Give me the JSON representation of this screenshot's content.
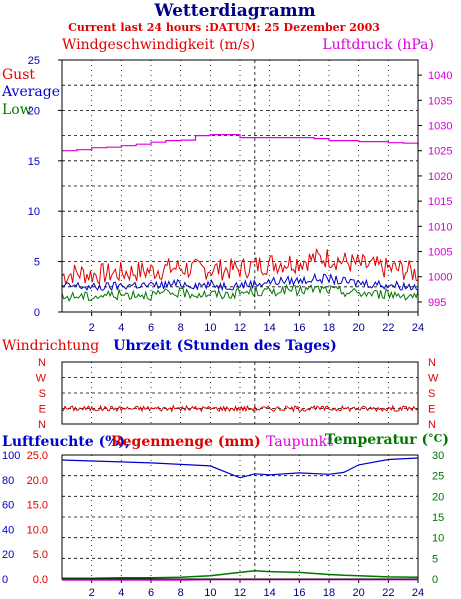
{
  "title": "Wetterdiagramm",
  "subtitle": "Current last 24 hours :DATUM: 25 Dezember 2003",
  "colors": {
    "red": "#e00000",
    "blue": "#0000cc",
    "green": "#007700",
    "magenta": "#dd00dd",
    "navy": "#000080"
  },
  "wind_panel": {
    "left_axis_title": "Windgeschwindigkeit (m/s)",
    "right_axis_title": "Luftdruck (hPa)",
    "legend": [
      "Gust",
      "Average",
      "Low"
    ],
    "left_ticks": [
      "0",
      "5",
      "10",
      "15",
      "20",
      "25"
    ],
    "right_ticks": [
      "995",
      "1000",
      "1005",
      "1010",
      "1015",
      "1020",
      "1025",
      "1030",
      "1035",
      "1040"
    ]
  },
  "direction_panel": {
    "left_title": "Windrichtung",
    "center_title": "Uhrzeit (Stunden des Tages)",
    "ticks": [
      "N",
      "E",
      "S",
      "W",
      "N"
    ]
  },
  "humidity_panel": {
    "left_title_humidity": "Luftfeuchte (%),",
    "left_title_rain": "Regenmenge (mm)",
    "dewpoint_title": "Taupunkt",
    "temperature_title": "Temperatur (",
    "temperature_unit": "°C",
    "temperature_close": ")",
    "humidity_ticks": [
      "0",
      "20",
      "40",
      "60",
      "80",
      "100"
    ],
    "rain_ticks": [
      "0.0",
      "5.0",
      "10.0",
      "15.0",
      "20.0",
      "25.0"
    ],
    "temp_ticks": [
      "0",
      "5",
      "10",
      "15",
      "20",
      "25",
      "30"
    ]
  },
  "x_ticks": [
    "2",
    "4",
    "6",
    "8",
    "10",
    "12",
    "14",
    "16",
    "18",
    "20",
    "22",
    "24"
  ],
  "chart_data": [
    {
      "type": "line",
      "title": "Wetterdiagramm",
      "subtitle": "Current last 24 hours :DATUM: 25 Dezember 2003",
      "xlabel": "Uhrzeit (Stunden des Tages)",
      "ylabel": "Windgeschwindigkeit (m/s)",
      "y2label": "Luftdruck (hPa)",
      "xlim": [
        0,
        24
      ],
      "ylim": [
        0,
        25
      ],
      "y2lim": [
        993,
        1043
      ],
      "grid": true,
      "legend": "top-left",
      "x": [
        0,
        1,
        2,
        3,
        4,
        5,
        6,
        7,
        8,
        9,
        10,
        11,
        12,
        13,
        14,
        15,
        16,
        17,
        18,
        19,
        20,
        21,
        22,
        23,
        24
      ],
      "series": [
        {
          "name": "Gust",
          "axis": "left",
          "color": "#e00000",
          "values": [
            3.6,
            3.9,
            3.7,
            3.8,
            3.9,
            4.0,
            4.1,
            4.3,
            4.4,
            4.2,
            4.3,
            4.2,
            4.3,
            4.6,
            4.8,
            4.9,
            5.0,
            5.3,
            5.4,
            5.0,
            4.7,
            4.5,
            4.3,
            4.2,
            3.8
          ]
        },
        {
          "name": "Average",
          "axis": "left",
          "color": "#0000cc",
          "values": [
            2.5,
            2.6,
            2.4,
            2.5,
            2.6,
            2.7,
            2.6,
            2.7,
            2.8,
            2.7,
            2.7,
            2.6,
            2.7,
            2.8,
            3.0,
            3.1,
            3.1,
            3.3,
            3.3,
            3.0,
            2.9,
            2.8,
            2.7,
            2.6,
            2.5
          ]
        },
        {
          "name": "Low",
          "axis": "left",
          "color": "#007700",
          "values": [
            1.4,
            1.6,
            1.5,
            1.7,
            1.7,
            1.8,
            1.7,
            1.8,
            1.9,
            1.8,
            1.8,
            1.7,
            1.9,
            2.0,
            2.0,
            2.2,
            2.1,
            2.3,
            2.2,
            2.0,
            1.9,
            1.8,
            1.8,
            1.7,
            1.6
          ]
        },
        {
          "name": "Luftdruck",
          "axis": "right",
          "color": "#dd00dd",
          "values": [
            1025.0,
            1025.2,
            1025.6,
            1025.7,
            1026.0,
            1026.3,
            1026.7,
            1027.0,
            1027.1,
            1028.0,
            1028.2,
            1028.2,
            1027.6,
            1027.6,
            1027.6,
            1027.6,
            1027.6,
            1027.4,
            1027.0,
            1027.0,
            1026.8,
            1026.8,
            1026.6,
            1026.5,
            1026.0
          ]
        }
      ]
    },
    {
      "type": "line",
      "title": "Windrichtung",
      "xlabel": "Uhrzeit (Stunden des Tages)",
      "xlim": [
        0,
        24
      ],
      "y_categories": [
        "N",
        "E",
        "S",
        "W",
        "N"
      ],
      "grid": true,
      "x": [
        0,
        2,
        4,
        6,
        8,
        10,
        12,
        14,
        16,
        18,
        20,
        22,
        24
      ],
      "series": [
        {
          "name": "Windrichtung",
          "color": "#e00000",
          "values": [
            "E",
            "E",
            "E",
            "E",
            "E",
            "E",
            "E",
            "E",
            "E",
            "E",
            "E",
            "E",
            "E"
          ]
        }
      ]
    },
    {
      "type": "line",
      "title": "Luftfeuchte (%), Regenmenge (mm), Taupunkt, Temperatur (°C)",
      "xlim": [
        0,
        24
      ],
      "ylim": [
        0,
        25
      ],
      "y2lim": [
        0,
        30
      ],
      "grid": true,
      "x": [
        0,
        2,
        4,
        6,
        8,
        10,
        12,
        13,
        14,
        16,
        18,
        19,
        20,
        22,
        24
      ],
      "series": [
        {
          "name": "Regenmenge (mm)",
          "axis": "left",
          "color": "#0000cc",
          "values": [
            24.0,
            23.8,
            23.6,
            23.4,
            23.1,
            22.8,
            20.4,
            21.2,
            21.0,
            21.4,
            21.1,
            21.5,
            23.0,
            24.1,
            24.4
          ]
        },
        {
          "name": "Temperatur (°C)",
          "axis": "right",
          "color": "#007700",
          "values": [
            0.2,
            0.2,
            0.3,
            0.3,
            0.4,
            0.8,
            1.6,
            2.0,
            1.8,
            1.6,
            1.1,
            0.9,
            0.8,
            0.5,
            0.4
          ]
        },
        {
          "name": "Taupunkt",
          "axis": "right",
          "color": "#dd00dd",
          "values": [
            -0.3,
            -0.3,
            -0.3,
            -0.3,
            -0.3,
            -0.2,
            -0.2,
            -0.2,
            -0.2,
            -0.2,
            -0.2,
            -0.2,
            -0.2,
            -0.2,
            -0.2
          ]
        }
      ]
    }
  ]
}
